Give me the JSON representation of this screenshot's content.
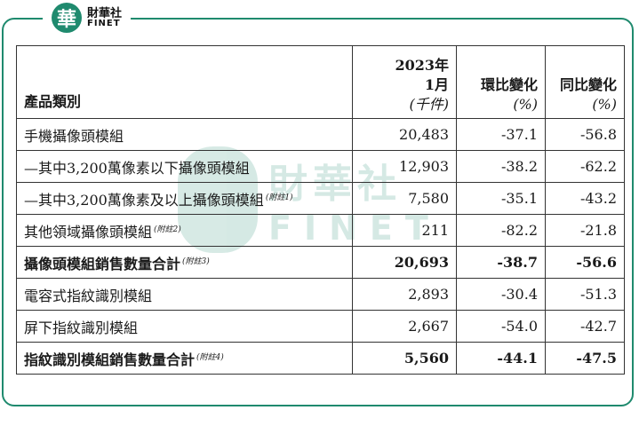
{
  "logo": {
    "mark": "華",
    "name_cn": "財華社",
    "name_en": "FINET"
  },
  "watermark": {
    "name_cn": "財華社",
    "name_en": "FINET"
  },
  "table": {
    "header": {
      "category": "產品類別",
      "col1_line1": "2023年",
      "col1_line2": "1月",
      "col1_unit": "(千件)",
      "col2": "環比變化",
      "col2_unit": "(%)",
      "col3": "同比變化",
      "col3_unit": "(%)"
    },
    "rows": [
      {
        "label": "手機攝像頭模組",
        "note": "",
        "value": "20,483",
        "mom": "-37.1",
        "yoy": "-56.8",
        "total": false
      },
      {
        "label": "—其中3,200萬像素以下攝像頭模組",
        "note": "",
        "value": "12,903",
        "mom": "-38.2",
        "yoy": "-62.2",
        "total": false
      },
      {
        "label": "—其中3,200萬像素及以上攝像頭模組",
        "note": "(附註1)",
        "value": "7,580",
        "mom": "-35.1",
        "yoy": "-43.2",
        "total": false
      },
      {
        "label": "其他領域攝像頭模組",
        "note": "(附註2)",
        "value": "211",
        "mom": "-82.2",
        "yoy": "-21.8",
        "total": false
      },
      {
        "label": "攝像頭模組銷售數量合計",
        "note": "(附註3)",
        "value": "20,693",
        "mom": "-38.7",
        "yoy": "-56.6",
        "total": true
      },
      {
        "label": "電容式指紋識別模組",
        "note": "",
        "value": "2,893",
        "mom": "-30.4",
        "yoy": "-51.3",
        "total": false
      },
      {
        "label": "屏下指紋識別模組",
        "note": "",
        "value": "2,667",
        "mom": "-54.0",
        "yoy": "-42.7",
        "total": false
      },
      {
        "label": "指紋識別模組銷售數量合計",
        "note": "(附註4)",
        "value": "5,560",
        "mom": "-44.1",
        "yoy": "-47.5",
        "total": true
      }
    ]
  }
}
